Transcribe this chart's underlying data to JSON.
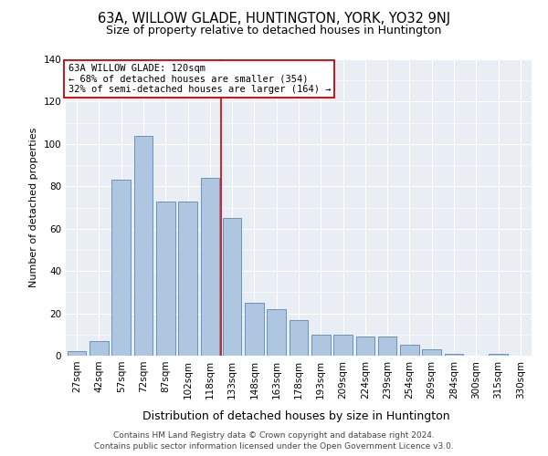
{
  "title": "63A, WILLOW GLADE, HUNTINGTON, YORK, YO32 9NJ",
  "subtitle": "Size of property relative to detached houses in Huntington",
  "xlabel": "Distribution of detached houses by size in Huntington",
  "ylabel": "Number of detached properties",
  "categories": [
    "27sqm",
    "42sqm",
    "57sqm",
    "72sqm",
    "87sqm",
    "102sqm",
    "118sqm",
    "133sqm",
    "148sqm",
    "163sqm",
    "178sqm",
    "193sqm",
    "209sqm",
    "224sqm",
    "239sqm",
    "254sqm",
    "269sqm",
    "284sqm",
    "300sqm",
    "315sqm",
    "330sqm"
  ],
  "values": [
    2,
    7,
    83,
    104,
    73,
    73,
    84,
    65,
    25,
    22,
    17,
    10,
    10,
    9,
    9,
    5,
    3,
    1,
    0,
    1,
    0
  ],
  "bar_color": "#aec6e0",
  "bar_edge_color": "#5588bb",
  "vline_x": 6.5,
  "vline_color": "#cc0000",
  "annotation_text": "63A WILLOW GLADE: 120sqm\n← 68% of detached houses are smaller (354)\n32% of semi-detached houses are larger (164) →",
  "annotation_box_color": "white",
  "annotation_box_edge_color": "#cc0000",
  "ylim": [
    0,
    140
  ],
  "yticks": [
    0,
    20,
    40,
    60,
    80,
    100,
    120,
    140
  ],
  "bg_color": "#e8eef4",
  "footer1": "Contains HM Land Registry data © Crown copyright and database right 2024.",
  "footer2": "Contains public sector information licensed under the Open Government Licence v3.0.",
  "title_fontsize": 10.5,
  "subtitle_fontsize": 9,
  "xlabel_fontsize": 9,
  "ylabel_fontsize": 8,
  "tick_fontsize": 7.5,
  "footer_fontsize": 6.5,
  "annot_fontsize": 7.5
}
